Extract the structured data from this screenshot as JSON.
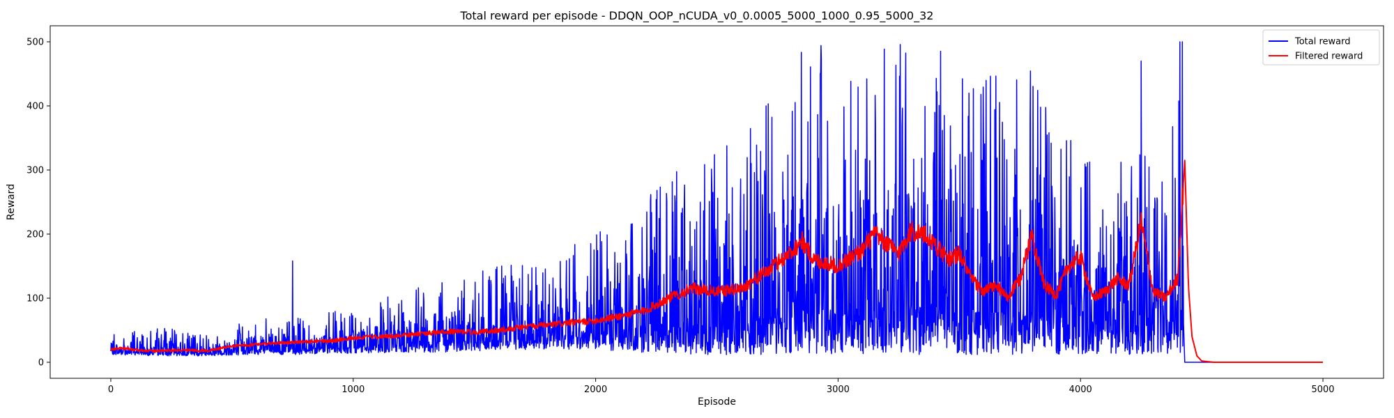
{
  "chart_data": {
    "type": "line",
    "title": "Total reward per episode - DDQN_OOP_nCUDA_v0_0.0005_5000_1000_0.95_5000_32",
    "xlabel": "Episode",
    "ylabel": "Reward",
    "xlim": [
      -250,
      5250
    ],
    "ylim": [
      -25,
      525
    ],
    "xticks": [
      0,
      1000,
      2000,
      3000,
      4000,
      5000
    ],
    "yticks": [
      0,
      100,
      200,
      300,
      400,
      500
    ],
    "grid": false,
    "legend_position": "top-right",
    "series": [
      {
        "name": "Total reward",
        "color": "#0000ff",
        "envelope": {
          "x": [
            0,
            200,
            400,
            600,
            800,
            1000,
            1200,
            1400,
            1600,
            1800,
            2000,
            2200,
            2400,
            2600,
            2800,
            3000,
            3200,
            3400,
            3600,
            3800,
            4000,
            4200,
            4400,
            4420
          ],
          "low": [
            12,
            10,
            10,
            12,
            12,
            14,
            15,
            16,
            18,
            20,
            20,
            15,
            12,
            12,
            12,
            12,
            12,
            12,
            12,
            12,
            12,
            12,
            14,
            14
          ],
          "high": [
            45,
            55,
            45,
            70,
            70,
            85,
            110,
            140,
            150,
            165,
            200,
            260,
            320,
            350,
            500,
            500,
            500,
            500,
            450,
            470,
            330,
            310,
            380,
            500
          ],
          "spikes": [
            [
              750,
              158
            ],
            [
              3870,
              358
            ],
            [
              4250,
              470
            ],
            [
              4420,
              500
            ],
            [
              4410,
              500
            ]
          ]
        },
        "tail": {
          "x_end": 4425,
          "zero_from": 4430,
          "zero_to": 5000
        }
      },
      {
        "name": "Filtered reward",
        "color": "#ff0000",
        "x": [
          0,
          50,
          100,
          200,
          300,
          400,
          500,
          600,
          700,
          800,
          900,
          1000,
          1100,
          1200,
          1300,
          1400,
          1500,
          1600,
          1700,
          1800,
          1900,
          2000,
          2100,
          2200,
          2300,
          2400,
          2500,
          2600,
          2700,
          2800,
          2850,
          2900,
          3000,
          3100,
          3150,
          3200,
          3250,
          3300,
          3350,
          3400,
          3450,
          3500,
          3550,
          3600,
          3650,
          3700,
          3750,
          3800,
          3850,
          3900,
          3950,
          4000,
          4050,
          4100,
          4150,
          4200,
          4250,
          4300,
          4350,
          4400,
          4430,
          4445,
          4460,
          4480,
          4500,
          4550,
          5000
        ],
        "values": [
          20,
          22,
          19,
          18,
          19,
          18,
          25,
          28,
          30,
          32,
          33,
          38,
          40,
          42,
          45,
          48,
          47,
          50,
          55,
          58,
          62,
          65,
          72,
          80,
          100,
          115,
          110,
          115,
          140,
          170,
          190,
          160,
          150,
          175,
          200,
          185,
          170,
          205,
          200,
          185,
          160,
          170,
          130,
          110,
          120,
          100,
          130,
          200,
          120,
          105,
          150,
          165,
          100,
          110,
          130,
          120,
          220,
          110,
          100,
          130,
          315,
          120,
          40,
          10,
          2,
          0,
          0
        ]
      }
    ]
  }
}
